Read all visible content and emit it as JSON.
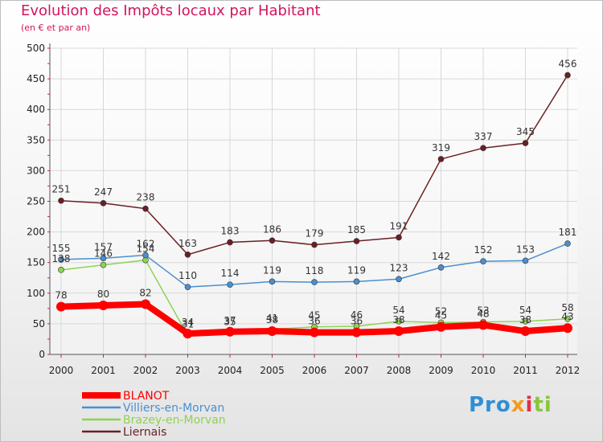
{
  "header": {
    "title": "Evolution des Impôts locaux par Habitant",
    "subtitle": "(en € et par an)"
  },
  "logo": {
    "text": "Proxiti",
    "parts": [
      "Pro",
      "x",
      "i",
      "ti"
    ]
  },
  "colors": {
    "title": "#d3145c",
    "grid": "#d8d8d8",
    "axis_ticks": "#e4135b"
  },
  "chart_data": {
    "type": "line",
    "title": "Evolution des Impôts locaux par Habitant",
    "subtitle": "(en € et par an)",
    "xlabel": "",
    "ylabel": "",
    "categories": [
      "2000",
      "2001",
      "2002",
      "2003",
      "2004",
      "2005",
      "2006",
      "2007",
      "2008",
      "2009",
      "2010",
      "2011",
      "2012"
    ],
    "ylim": [
      0,
      500
    ],
    "yticks": [
      0,
      50,
      100,
      150,
      200,
      250,
      300,
      350,
      400,
      450,
      500
    ],
    "grid": true,
    "legend_position": "bottom-left",
    "series": [
      {
        "name": "BLANOT",
        "color": "#ff0000",
        "values": [
          78,
          80,
          82,
          34,
          37,
          38,
          36,
          36,
          38,
          45,
          48,
          38,
          43
        ],
        "labels": [
          "78",
          "80",
          "82",
          "34",
          "37",
          "38",
          "36",
          "36",
          "38",
          "45",
          "48",
          "38",
          "43"
        ]
      },
      {
        "name": "Villiers-en-Morvan",
        "color": "#4a8fd0",
        "values": [
          155,
          157,
          162,
          110,
          114,
          119,
          118,
          119,
          123,
          142,
          152,
          153,
          181
        ],
        "labels": [
          "155",
          "157",
          "162",
          "110",
          "114",
          "119",
          "118",
          "119",
          "123",
          "142",
          "152",
          "153",
          "181"
        ]
      },
      {
        "name": "Brazey-en-Morvan",
        "color": "#8fd352",
        "values": [
          138,
          146,
          154,
          31,
          35,
          41,
          45,
          46,
          54,
          52,
          53,
          54,
          58
        ],
        "labels": [
          "138",
          "146",
          "154",
          "31",
          "35",
          "41",
          "45",
          "46",
          "54",
          "52",
          "53",
          "54",
          "58"
        ]
      },
      {
        "name": "Liernais",
        "color": "#6b1f23",
        "values": [
          251,
          247,
          238,
          163,
          183,
          186,
          179,
          185,
          191,
          319,
          337,
          345,
          456
        ],
        "labels": [
          "251",
          "247",
          "238",
          "163",
          "183",
          "186",
          "179",
          "185",
          "191",
          "319",
          "337",
          "345",
          "456"
        ]
      }
    ]
  }
}
